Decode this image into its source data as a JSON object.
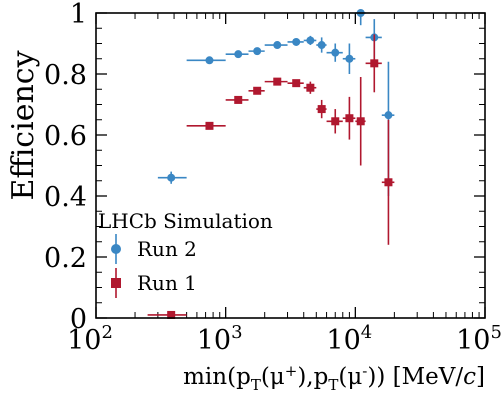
{
  "chart_data": {
    "type": "scatter",
    "title": "",
    "ylabel": "Efficiency",
    "xlabel_parts": [
      "min(p",
      "T",
      "(μ",
      "+",
      "),p",
      "T",
      "(μ",
      "-",
      ")) [MeV/",
      "c",
      "]"
    ],
    "xscale": "log",
    "xlim": [
      100,
      100000
    ],
    "ylim": [
      0,
      1
    ],
    "x_tick_labels": [
      "10^2",
      "10^3",
      "10^4",
      "10^5"
    ],
    "x_ticks": [
      100,
      1000,
      10000,
      100000
    ],
    "y_ticks": [
      0,
      0.2,
      0.4,
      0.6,
      0.8,
      1
    ],
    "y_tick_labels": [
      "0",
      "0.2",
      "0.4",
      "0.6",
      "0.8",
      "1"
    ],
    "grid": false,
    "legend": {
      "title": "LHCb Simulation",
      "placement": "bottom-left"
    },
    "series": [
      {
        "name": "Run 2",
        "color": "#3a87c4",
        "marker": "circle",
        "points": [
          {
            "x": 380,
            "y": 0.46,
            "xlo": 300,
            "xhi": 500,
            "ylo": 0.44,
            "yhi": 0.48
          },
          {
            "x": 750,
            "y": 0.845,
            "xlo": 500,
            "xhi": 1000,
            "ylo": 0.835,
            "yhi": 0.855
          },
          {
            "x": 1250,
            "y": 0.865,
            "xlo": 1000,
            "xhi": 1500,
            "ylo": 0.855,
            "yhi": 0.875
          },
          {
            "x": 1750,
            "y": 0.875,
            "xlo": 1500,
            "xhi": 2000,
            "ylo": 0.865,
            "yhi": 0.885
          },
          {
            "x": 2500,
            "y": 0.895,
            "xlo": 2000,
            "xhi": 3000,
            "ylo": 0.885,
            "yhi": 0.905
          },
          {
            "x": 3500,
            "y": 0.905,
            "xlo": 3000,
            "xhi": 4000,
            "ylo": 0.895,
            "yhi": 0.915
          },
          {
            "x": 4500,
            "y": 0.91,
            "xlo": 4000,
            "xhi": 5000,
            "ylo": 0.895,
            "yhi": 0.925
          },
          {
            "x": 5500,
            "y": 0.895,
            "xlo": 5000,
            "xhi": 6000,
            "ylo": 0.87,
            "yhi": 0.92
          },
          {
            "x": 7000,
            "y": 0.87,
            "xlo": 6000,
            "xhi": 8000,
            "ylo": 0.84,
            "yhi": 0.9
          },
          {
            "x": 9000,
            "y": 0.85,
            "xlo": 8000,
            "xhi": 10000,
            "ylo": 0.8,
            "yhi": 0.9
          },
          {
            "x": 11000,
            "y": 1.0,
            "xlo": 10000,
            "xhi": 12000,
            "ylo": 0.96,
            "yhi": 1.0
          },
          {
            "x": 14000,
            "y": 0.92,
            "xlo": 12000,
            "xhi": 16000,
            "ylo": 0.84,
            "yhi": 0.98
          },
          {
            "x": 18000,
            "y": 0.665,
            "xlo": 16000,
            "xhi": 20000,
            "ylo": 0.4,
            "yhi": 0.84
          }
        ]
      },
      {
        "name": "Run 1",
        "color": "#b0182f",
        "marker": "square",
        "points": [
          {
            "x": 380,
            "y": 0.01,
            "xlo": 250,
            "xhi": 500,
            "ylo": 0.0,
            "yhi": 0.02
          },
          {
            "x": 750,
            "y": 0.63,
            "xlo": 500,
            "xhi": 1000,
            "ylo": 0.62,
            "yhi": 0.64
          },
          {
            "x": 1250,
            "y": 0.715,
            "xlo": 1000,
            "xhi": 1500,
            "ylo": 0.705,
            "yhi": 0.725
          },
          {
            "x": 1750,
            "y": 0.745,
            "xlo": 1500,
            "xhi": 2000,
            "ylo": 0.735,
            "yhi": 0.755
          },
          {
            "x": 2500,
            "y": 0.775,
            "xlo": 2000,
            "xhi": 3000,
            "ylo": 0.765,
            "yhi": 0.785
          },
          {
            "x": 3500,
            "y": 0.77,
            "xlo": 3000,
            "xhi": 4000,
            "ylo": 0.76,
            "yhi": 0.78
          },
          {
            "x": 4500,
            "y": 0.755,
            "xlo": 4000,
            "xhi": 5000,
            "ylo": 0.735,
            "yhi": 0.775
          },
          {
            "x": 5500,
            "y": 0.685,
            "xlo": 5000,
            "xhi": 6000,
            "ylo": 0.655,
            "yhi": 0.715
          },
          {
            "x": 7000,
            "y": 0.645,
            "xlo": 6000,
            "xhi": 8000,
            "ylo": 0.605,
            "yhi": 0.685
          },
          {
            "x": 9000,
            "y": 0.655,
            "xlo": 8000,
            "xhi": 10000,
            "ylo": 0.585,
            "yhi": 0.725
          },
          {
            "x": 11000,
            "y": 0.645,
            "xlo": 10000,
            "xhi": 12000,
            "ylo": 0.5,
            "yhi": 0.79
          },
          {
            "x": 14000,
            "y": 0.835,
            "xlo": 12000,
            "xhi": 16000,
            "ylo": 0.74,
            "yhi": 0.93
          },
          {
            "x": 18000,
            "y": 0.445,
            "xlo": 16000,
            "xhi": 20000,
            "ylo": 0.24,
            "yhi": 0.65
          }
        ]
      }
    ]
  }
}
